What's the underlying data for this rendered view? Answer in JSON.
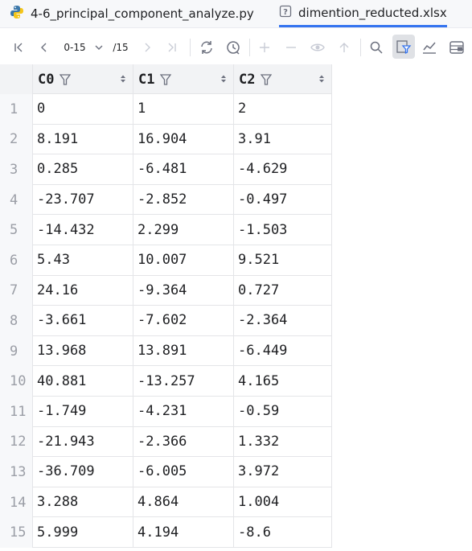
{
  "tabs": [
    {
      "label": "4-6_principal_component_analyze.py",
      "icon": "python-file-icon",
      "active": false
    },
    {
      "label": "dimention_reducted.xlsx",
      "icon": "unknown-file-icon",
      "active": true
    }
  ],
  "toolbar": {
    "page_range": "0-15",
    "page_total": "/15"
  },
  "columns": [
    "C0",
    "C1",
    "C2"
  ],
  "rows": [
    {
      "n": "1",
      "c": [
        "0",
        "1",
        "2"
      ]
    },
    {
      "n": "2",
      "c": [
        "8.191",
        "16.904",
        "3.91"
      ]
    },
    {
      "n": "3",
      "c": [
        "0.285",
        "-6.481",
        "-4.629"
      ]
    },
    {
      "n": "4",
      "c": [
        "-23.707",
        "-2.852",
        "-0.497"
      ]
    },
    {
      "n": "5",
      "c": [
        "-14.432",
        "2.299",
        "-1.503"
      ]
    },
    {
      "n": "6",
      "c": [
        "5.43",
        "10.007",
        "9.521"
      ]
    },
    {
      "n": "7",
      "c": [
        "24.16",
        "-9.364",
        "0.727"
      ]
    },
    {
      "n": "8",
      "c": [
        "-3.661",
        "-7.602",
        "-2.364"
      ]
    },
    {
      "n": "9",
      "c": [
        "13.968",
        "13.891",
        "-6.449"
      ]
    },
    {
      "n": "10",
      "c": [
        "40.881",
        "-13.257",
        "4.165"
      ]
    },
    {
      "n": "11",
      "c": [
        "-1.749",
        "-4.231",
        "-0.59"
      ]
    },
    {
      "n": "12",
      "c": [
        "-21.943",
        "-2.366",
        "1.332"
      ]
    },
    {
      "n": "13",
      "c": [
        "-36.709",
        "-6.005",
        "3.972"
      ]
    },
    {
      "n": "14",
      "c": [
        "3.288",
        "4.864",
        "1.004"
      ]
    },
    {
      "n": "15",
      "c": [
        "5.999",
        "4.194",
        "-8.6"
      ]
    }
  ]
}
